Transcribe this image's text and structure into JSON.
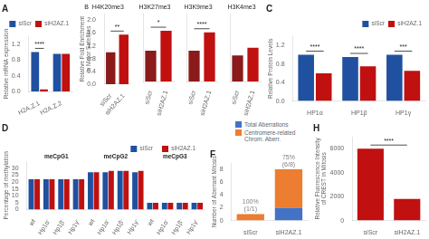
{
  "chart_data": [
    {
      "type": "bar",
      "title": "A",
      "categories": [
        "H2A.Z.1",
        "H2A.Z.2"
      ],
      "series": [
        {
          "name": "siScr",
          "color": "#2050a0",
          "values": [
            1.0,
            0.95
          ]
        },
        {
          "name": "siH2AZ.1",
          "color": "#c01010",
          "values": [
            0.05,
            0.95
          ]
        }
      ],
      "ylabel": "Relative mRNA expression",
      "ylim": [
        0,
        1.4
      ],
      "yticks": [
        {
          "value": 0,
          "label": "0.0"
        },
        0.4,
        0.8,
        1.2
      ],
      "grid": false,
      "legend": "upper right",
      "annotations": [
        {
          "text": "****",
          "categories": [
            "H2A.Z.1"
          ],
          "line_style": "solid"
        }
      ]
    },
    {
      "type": "bar",
      "title": "B  H4K20me3",
      "categories": [
        "siScr",
        "siH2AZ.1"
      ],
      "values": [
        1.0,
        1.55
      ],
      "colors": [
        "#8B1A1A",
        "#c01010"
      ],
      "ylabel": "Relative Fold Enrichment\nin Major Satellites",
      "ylim": [
        0,
        2.2
      ],
      "yticks": [
        {
          "value": 0,
          "label": "0.0"
        },
        0.4,
        0.8,
        1.2,
        1.6,
        {
          "value": 2,
          "label": "2.0"
        }
      ],
      "grid": false,
      "annotations": [
        {
          "text": "**",
          "categories": [
            "siScr",
            "siH2AZ.1"
          ],
          "line_style": "solid"
        }
      ]
    },
    {
      "type": "bar",
      "title": "H3K27me3",
      "categories": [
        "siScr",
        "siH2AZ.1"
      ],
      "values": [
        1.0,
        1.65
      ],
      "colors": [
        "#8B1A1A",
        "#c01010"
      ],
      "ylim": [
        0,
        2.2
      ],
      "yticks": [
        {
          "value": 0,
          "label": "0.0"
        },
        0.4,
        0.8,
        1.2,
        1.6,
        {
          "value": 2,
          "label": "2.0"
        }
      ],
      "grid": false,
      "tick_labels": "x",
      "annotations": [
        {
          "text": "*",
          "categories": [
            "siScr",
            "siH2AZ.1"
          ],
          "line_style": "solid"
        }
      ]
    },
    {
      "type": "bar",
      "title": "H3K9me3",
      "categories": [
        "siScr",
        "siH2AZ.1"
      ],
      "values": [
        1.0,
        1.6
      ],
      "colors": [
        "#8B1A1A",
        "#c01010"
      ],
      "ylim": [
        0,
        2.2
      ],
      "yticks": [
        {
          "value": 0,
          "label": "0.0"
        },
        0.4,
        0.8,
        1.2,
        1.6,
        {
          "value": 2,
          "label": "2.0"
        }
      ],
      "grid": false,
      "tick_labels": "x",
      "annotations": [
        {
          "text": "****",
          "categories": [
            "siScr",
            "siH2AZ.1"
          ],
          "line_style": "solid"
        }
      ]
    },
    {
      "type": "bar",
      "title": "H3K4me3",
      "categories": [
        "siScr",
        "siH2AZ.1"
      ],
      "values": [
        0.85,
        1.1
      ],
      "colors": [
        "#8B1A1A",
        "#c01010"
      ],
      "ylim": [
        0,
        2.2
      ],
      "yticks": [
        {
          "value": 0,
          "label": "0.0"
        },
        0.4,
        0.8,
        1.2,
        1.6,
        {
          "value": 2,
          "label": "2.0"
        }
      ],
      "grid": false,
      "tick_labels": "x"
    },
    {
      "type": "bar",
      "title": "C",
      "categories": [
        "HP1α",
        "HP1β",
        "HP1γ"
      ],
      "series": [
        {
          "name": "siScr",
          "color": "#2050a0",
          "values": [
            1.0,
            0.95,
            1.0
          ]
        },
        {
          "name": "siH2AZ.1",
          "color": "#c01010",
          "values": [
            0.6,
            0.75,
            0.65
          ]
        }
      ],
      "ylabel": "Relative Protein Levels",
      "ylim": [
        0,
        1.4
      ],
      "yticks": [
        {
          "value": 0,
          "label": "0.0"
        },
        0.4,
        0.8,
        1.2
      ],
      "grid": false,
      "legend": "upper right",
      "annotations": [
        {
          "text": "****",
          "categories": [
            "HP1α"
          ],
          "line_style": "solid"
        },
        {
          "text": "****",
          "categories": [
            "HP1β"
          ],
          "line_style": "solid"
        },
        {
          "text": "***",
          "categories": [
            "HP1γ"
          ],
          "line_style": "solid"
        }
      ]
    },
    {
      "type": "bar",
      "title": "D",
      "groups": [
        "meCpG1",
        "meCpG2",
        "meCpG3"
      ],
      "categories": [
        "wt",
        "Hp1α⁻",
        "Hp1β⁻",
        "Hp1γ⁻"
      ],
      "series": [
        {
          "name": "siScr",
          "color": "#2050a0",
          "values": [
            [
              22,
              22,
              22,
              22
            ],
            [
              27,
              27,
              28,
              27
            ],
            [
              5,
              5,
              5,
              5
            ]
          ]
        },
        {
          "name": "siH2AZ.1",
          "color": "#c01010",
          "values": [
            [
              22,
              22,
              22,
              22
            ],
            [
              27,
              28,
              28,
              28
            ],
            [
              5,
              5,
              5,
              5
            ]
          ]
        }
      ],
      "ylabel": "Percentage of methylation",
      "ylim": [
        0,
        35
      ],
      "yticks": [
        0,
        5,
        10,
        15,
        20,
        25,
        30
      ],
      "grid": false,
      "legend": "upper right"
    },
    {
      "type": "bar",
      "title": "F",
      "stacked": true,
      "categories": [
        "siScr",
        "siH2AZ.1"
      ],
      "series": [
        {
          "name": "Total Aberrations",
          "color": "#4472c4",
          "values": [
            0,
            2
          ]
        },
        {
          "name": "Centromere-related\nChrom. Aberr.",
          "color": "#ed7d31",
          "values": [
            1,
            6
          ]
        }
      ],
      "ylabel": "Number of Aberrant Mitosis",
      "ylim": [
        0,
        9
      ],
      "yticks": [
        0,
        2,
        4,
        6,
        8
      ],
      "grid": false,
      "legend": "upper left",
      "annotations": [
        {
          "text": "75%\n(6/8)",
          "categories": [
            "siH2AZ.1"
          ],
          "color": "gray"
        },
        {
          "text": "100%\n(1/1)",
          "categories": [
            "siScr"
          ],
          "color": "gray"
        }
      ]
    },
    {
      "type": "bar",
      "title": "H",
      "categories": [
        "siScr",
        "siH2AZ.1"
      ],
      "values": [
        6000,
        1800
      ],
      "color": "#c01010",
      "ylabel": "Relative Fluorescence Intensity\nof CREST in Mitosis",
      "ylim": [
        0,
        7000
      ],
      "yticks": [
        0,
        2000,
        4000,
        6000
      ],
      "grid": false,
      "annotations": [
        {
          "text": "****",
          "categories": [
            "siScr",
            "siH2AZ.1"
          ],
          "line_style": "solid"
        }
      ]
    }
  ]
}
